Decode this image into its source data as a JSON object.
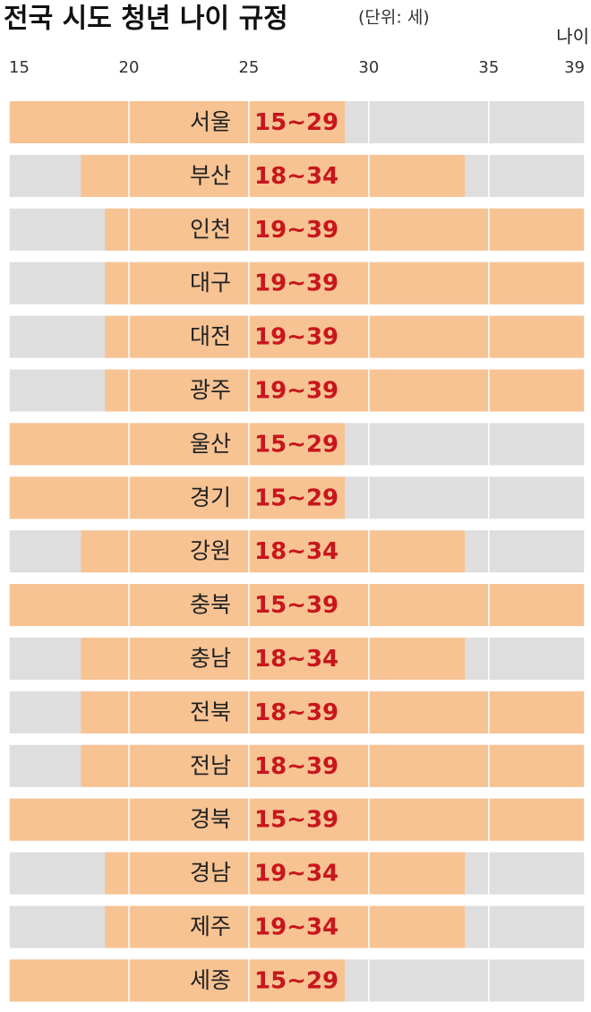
{
  "chart_data": {
    "type": "range-bar",
    "title": "전국 시도 청년 나이 규정",
    "subtitle": "(단위: 세)",
    "x_label": "나이",
    "categories": [
      "서울",
      "부산",
      "인천",
      "대구",
      "대전",
      "광주",
      "울산",
      "경기",
      "강원",
      "충북",
      "충남",
      "전북",
      "전남",
      "경북",
      "경남",
      "제주",
      "세종"
    ],
    "low": [
      15,
      18,
      19,
      19,
      19,
      19,
      15,
      15,
      18,
      15,
      18,
      18,
      18,
      15,
      19,
      19,
      15
    ],
    "high": [
      29,
      34,
      39,
      39,
      39,
      39,
      29,
      29,
      34,
      39,
      34,
      39,
      39,
      39,
      34,
      34,
      29
    ],
    "value_labels": [
      "15~29",
      "18~34",
      "19~39",
      "19~39",
      "19~39",
      "19~39",
      "15~29",
      "15~29",
      "18~34",
      "15~39",
      "18~34",
      "18~39",
      "18~39",
      "15~39",
      "19~34",
      "19~34",
      "15~29"
    ],
    "color": "#f7c393",
    "background_color": "#dedede",
    "label_color": "#c8161d",
    "xlim": [
      15,
      39
    ],
    "xticks": [
      15,
      20,
      25,
      30,
      35,
      39
    ],
    "grid": true
  }
}
